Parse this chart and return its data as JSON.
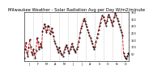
{
  "title": "Milwaukee Weather - Solar Radiation Avg per Day W/m2/minute",
  "title_fontsize": 3.8,
  "line_color": "#cc0000",
  "line_style": "--",
  "line_width": 0.6,
  "marker": ".",
  "marker_size": 1.0,
  "marker_color": "#000000",
  "background_color": "#ffffff",
  "grid_color": "#999999",
  "grid_style": ":",
  "ylim": [
    0,
    350
  ],
  "ytick_fontsize": 2.5,
  "xtick_fontsize": 2.3,
  "values": [
    25,
    85,
    130,
    65,
    35,
    95,
    155,
    105,
    65,
    45,
    85,
    55,
    25,
    75,
    165,
    135,
    85,
    105,
    125,
    95,
    215,
    235,
    265,
    245,
    205,
    225,
    255,
    245,
    195,
    215,
    235,
    205,
    175,
    145,
    125,
    105,
    85,
    65,
    95,
    75,
    55,
    45,
    35,
    65,
    85,
    105,
    115,
    95,
    75,
    55,
    85,
    105,
    125,
    105,
    85,
    75,
    65,
    85,
    105,
    135,
    165,
    205,
    235,
    255,
    285,
    305,
    285,
    265,
    245,
    225,
    205,
    185,
    165,
    145,
    125,
    105,
    85,
    105,
    135,
    165,
    195,
    225,
    255,
    275,
    305,
    325,
    315,
    295,
    275,
    255,
    285,
    315,
    335,
    315,
    295,
    275,
    255,
    285,
    315,
    345,
    325,
    305,
    285,
    265,
    245,
    225,
    205,
    185,
    55,
    35,
    25,
    15,
    35,
    55,
    45
  ],
  "xtick_labels": [
    "J",
    "F",
    "M",
    "A",
    "M",
    "J",
    "J",
    "A",
    "S",
    "O",
    "N",
    "D"
  ],
  "ytick_vals": [
    50,
    100,
    150,
    200,
    250,
    300,
    350
  ],
  "ytick_strs": [
    "50",
    "100",
    "150",
    "200",
    "250",
    "300",
    "350"
  ]
}
